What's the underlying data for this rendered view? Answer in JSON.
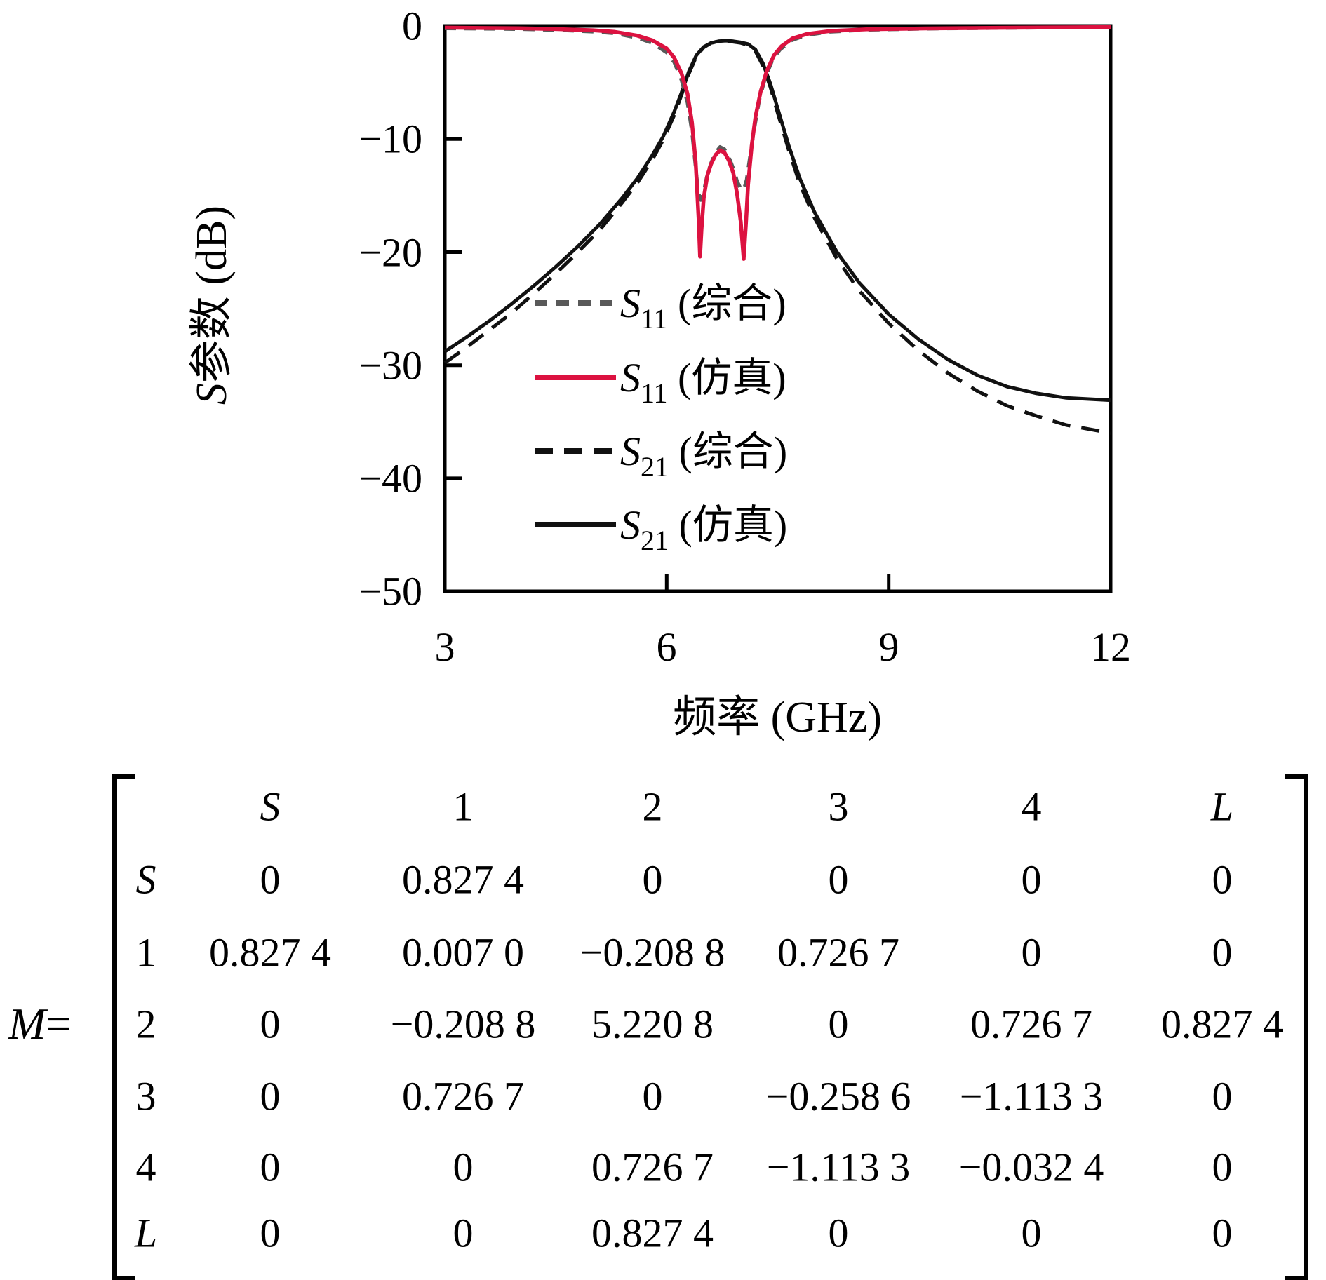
{
  "colors": {
    "red": "#dc1240",
    "black": "#111111",
    "gray": "#595959",
    "frame": "#000000"
  },
  "chart_data": {
    "type": "line",
    "title": "",
    "xlabel": "频率 (GHz)",
    "ylabel_base": "S",
    "ylabel_rest": "参数 (dB)",
    "xlim": [
      3,
      12
    ],
    "ylim": [
      -50,
      0
    ],
    "grid": false,
    "legend_position": "inside-center-left",
    "x_ticks": [
      3,
      6,
      9,
      12
    ],
    "x_tick_labels": [
      "3",
      "6",
      "9",
      "12"
    ],
    "y_ticks": [
      0,
      -10,
      -20,
      -30,
      -40,
      -50
    ],
    "y_tick_labels": [
      "0",
      "−10",
      "−20",
      "−30",
      "−40",
      "−50"
    ],
    "series": [
      {
        "name": "S11 (综合)",
        "style": "dashed",
        "dash": "16 12",
        "color": "#595959",
        "points": [
          [
            3,
            -0.22
          ],
          [
            3.5,
            -0.25
          ],
          [
            4,
            -0.28
          ],
          [
            4.5,
            -0.36
          ],
          [
            5,
            -0.5
          ],
          [
            5.3,
            -0.66
          ],
          [
            5.6,
            -1.05
          ],
          [
            5.8,
            -1.5
          ],
          [
            6.0,
            -2.35
          ],
          [
            6.1,
            -3.2
          ],
          [
            6.2,
            -4.8
          ],
          [
            6.28,
            -6.8
          ],
          [
            6.34,
            -9.3
          ],
          [
            6.39,
            -12.5
          ],
          [
            6.43,
            -14.8
          ],
          [
            6.46,
            -15.4
          ],
          [
            6.5,
            -14.6
          ],
          [
            6.55,
            -13.1
          ],
          [
            6.6,
            -12.1
          ],
          [
            6.66,
            -11.2
          ],
          [
            6.72,
            -10.7
          ],
          [
            6.78,
            -10.9
          ],
          [
            6.84,
            -11.6
          ],
          [
            6.9,
            -12.6
          ],
          [
            6.95,
            -13.7
          ],
          [
            7.0,
            -14.4
          ],
          [
            7.04,
            -14.5
          ],
          [
            7.08,
            -13.6
          ],
          [
            7.12,
            -11.8
          ],
          [
            7.18,
            -9.2
          ],
          [
            7.25,
            -6.6
          ],
          [
            7.33,
            -4.6
          ],
          [
            7.43,
            -3.0
          ],
          [
            7.53,
            -2.1
          ],
          [
            7.68,
            -1.3
          ],
          [
            7.88,
            -0.82
          ],
          [
            8.2,
            -0.52
          ],
          [
            8.7,
            -0.35
          ],
          [
            9.5,
            -0.25
          ],
          [
            10.5,
            -0.18
          ],
          [
            11.2,
            -0.15
          ],
          [
            12,
            -0.12
          ]
        ]
      },
      {
        "name": "S11 (仿真)",
        "style": "solid",
        "dash": "",
        "color": "#dc1240",
        "points": [
          [
            3,
            -0.15
          ],
          [
            3.5,
            -0.18
          ],
          [
            4,
            -0.2
          ],
          [
            4.5,
            -0.27
          ],
          [
            5,
            -0.38
          ],
          [
            5.3,
            -0.52
          ],
          [
            5.6,
            -0.85
          ],
          [
            5.8,
            -1.25
          ],
          [
            6.0,
            -2.0
          ],
          [
            6.1,
            -2.8
          ],
          [
            6.2,
            -4.2
          ],
          [
            6.28,
            -6.0
          ],
          [
            6.34,
            -8.5
          ],
          [
            6.39,
            -12.0
          ],
          [
            6.43,
            -17.0
          ],
          [
            6.45,
            -20.4
          ],
          [
            6.47,
            -18.0
          ],
          [
            6.5,
            -15.2
          ],
          [
            6.55,
            -13.2
          ],
          [
            6.6,
            -12.2
          ],
          [
            6.66,
            -11.4
          ],
          [
            6.72,
            -11.0
          ],
          [
            6.78,
            -11.2
          ],
          [
            6.84,
            -11.9
          ],
          [
            6.9,
            -13.0
          ],
          [
            6.95,
            -14.8
          ],
          [
            7.0,
            -17.3
          ],
          [
            7.04,
            -20.6
          ],
          [
            7.07,
            -17.5
          ],
          [
            7.1,
            -14.0
          ],
          [
            7.15,
            -10.5
          ],
          [
            7.2,
            -8.0
          ],
          [
            7.27,
            -5.8
          ],
          [
            7.35,
            -4.0
          ],
          [
            7.45,
            -2.6
          ],
          [
            7.55,
            -1.8
          ],
          [
            7.7,
            -1.1
          ],
          [
            7.9,
            -0.7
          ],
          [
            8.2,
            -0.45
          ],
          [
            8.7,
            -0.3
          ],
          [
            9.5,
            -0.22
          ],
          [
            10.5,
            -0.16
          ],
          [
            11.2,
            -0.13
          ],
          [
            12,
            -0.1
          ]
        ]
      },
      {
        "name": "S21 (综合)",
        "style": "dashed",
        "dash": "26 16",
        "color": "#111111",
        "points": [
          [
            3,
            -29.8
          ],
          [
            3.3,
            -28.4
          ],
          [
            3.6,
            -26.9
          ],
          [
            3.9,
            -25.4
          ],
          [
            4.2,
            -23.7
          ],
          [
            4.5,
            -21.9
          ],
          [
            4.8,
            -20.0
          ],
          [
            5.1,
            -18.0
          ],
          [
            5.4,
            -15.6
          ],
          [
            5.6,
            -13.9
          ],
          [
            5.8,
            -11.9
          ],
          [
            5.95,
            -10.1
          ],
          [
            6.1,
            -7.9
          ],
          [
            6.2,
            -6.1
          ],
          [
            6.3,
            -4.2
          ],
          [
            6.4,
            -2.7
          ],
          [
            6.5,
            -1.9
          ],
          [
            6.6,
            -1.5
          ],
          [
            6.7,
            -1.35
          ],
          [
            6.8,
            -1.3
          ],
          [
            6.9,
            -1.4
          ],
          [
            7.0,
            -1.5
          ],
          [
            7.1,
            -1.7
          ],
          [
            7.2,
            -2.25
          ],
          [
            7.3,
            -3.5
          ],
          [
            7.4,
            -5.4
          ],
          [
            7.5,
            -7.7
          ],
          [
            7.65,
            -11.0
          ],
          [
            7.8,
            -14.0
          ],
          [
            8.0,
            -17.0
          ],
          [
            8.3,
            -20.6
          ],
          [
            8.6,
            -23.4
          ],
          [
            9.0,
            -26.3
          ],
          [
            9.4,
            -28.7
          ],
          [
            9.8,
            -30.7
          ],
          [
            10.2,
            -32.3
          ],
          [
            10.6,
            -33.6
          ],
          [
            11.0,
            -34.5
          ],
          [
            11.4,
            -35.3
          ],
          [
            12,
            -36.0
          ]
        ]
      },
      {
        "name": "S21 (仿真)",
        "style": "solid",
        "dash": "",
        "color": "#111111",
        "points": [
          [
            3,
            -28.8
          ],
          [
            3.3,
            -27.5
          ],
          [
            3.6,
            -26.1
          ],
          [
            3.9,
            -24.6
          ],
          [
            4.2,
            -23.0
          ],
          [
            4.5,
            -21.3
          ],
          [
            4.8,
            -19.5
          ],
          [
            5.1,
            -17.5
          ],
          [
            5.4,
            -15.2
          ],
          [
            5.6,
            -13.5
          ],
          [
            5.8,
            -11.5
          ],
          [
            5.95,
            -9.8
          ],
          [
            6.1,
            -7.6
          ],
          [
            6.2,
            -5.9
          ],
          [
            6.3,
            -4.0
          ],
          [
            6.4,
            -2.6
          ],
          [
            6.5,
            -1.85
          ],
          [
            6.6,
            -1.5
          ],
          [
            6.7,
            -1.35
          ],
          [
            6.8,
            -1.3
          ],
          [
            6.9,
            -1.35
          ],
          [
            7.0,
            -1.45
          ],
          [
            7.1,
            -1.6
          ],
          [
            7.2,
            -2.1
          ],
          [
            7.3,
            -3.3
          ],
          [
            7.4,
            -5.1
          ],
          [
            7.5,
            -7.3
          ],
          [
            7.65,
            -10.6
          ],
          [
            7.8,
            -13.5
          ],
          [
            8.0,
            -16.5
          ],
          [
            8.3,
            -20.0
          ],
          [
            8.6,
            -22.7
          ],
          [
            9.0,
            -25.5
          ],
          [
            9.4,
            -27.7
          ],
          [
            9.8,
            -29.5
          ],
          [
            10.2,
            -30.9
          ],
          [
            10.6,
            -31.9
          ],
          [
            11.0,
            -32.5
          ],
          [
            11.4,
            -32.9
          ],
          [
            12,
            -33.1
          ]
        ]
      }
    ]
  },
  "legend": [
    {
      "base": "S",
      "sub": "11",
      "rest": " (综合)",
      "line": "gray-dashed"
    },
    {
      "base": "S",
      "sub": "11",
      "rest": " (仿真)",
      "line": "red-solid"
    },
    {
      "base": "S",
      "sub": "21",
      "rest": " (综合)",
      "line": "black-dashed"
    },
    {
      "base": "S",
      "sub": "21",
      "rest": " (仿真)",
      "line": "black-solid"
    }
  ],
  "matrix": {
    "lhs": "M",
    "equals": "=",
    "col_headers": [
      "S",
      "1",
      "2",
      "3",
      "4",
      "L"
    ],
    "rows": [
      {
        "label": "S",
        "cells": [
          "0",
          "0.827 4",
          "0",
          "0",
          "0",
          "0"
        ]
      },
      {
        "label": "1",
        "cells": [
          "0.827 4",
          "0.007 0",
          "−0.208 8",
          "0.726 7",
          "0",
          "0"
        ]
      },
      {
        "label": "2",
        "cells": [
          "0",
          "−0.208 8",
          "5.220 8",
          "0",
          "0.726 7",
          "0.827 4"
        ]
      },
      {
        "label": "3",
        "cells": [
          "0",
          "0.726 7",
          "0",
          "−0.258 6",
          "−1.113 3",
          "0"
        ]
      },
      {
        "label": "4",
        "cells": [
          "0",
          "0",
          "0.726 7",
          "−1.113 3",
          "−0.032 4",
          "0"
        ]
      },
      {
        "label": "L",
        "cells": [
          "0",
          "0",
          "0.827 4",
          "0",
          "0",
          "0"
        ]
      }
    ]
  }
}
